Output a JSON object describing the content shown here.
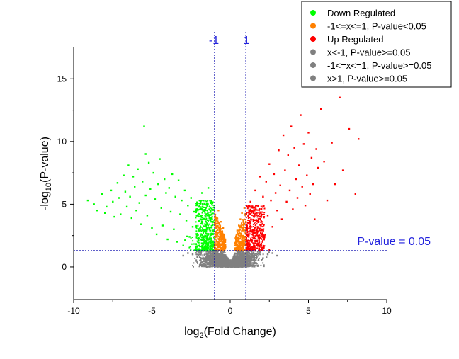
{
  "chart_data": {
    "type": "scatter",
    "title": "",
    "xlabel": {
      "prefix": "log",
      "sub": "2",
      "suffix": "(Fold Change)"
    },
    "ylabel": {
      "prefix": "-log",
      "sub": "10",
      "suffix": "(P-value)"
    },
    "xlim": [
      -10,
      10
    ],
    "ylim": [
      -2.6,
      17.5
    ],
    "xticks": [
      -10,
      -5,
      0,
      5,
      10
    ],
    "yticks": [
      0,
      5,
      10,
      15
    ],
    "grid": false,
    "legend_position": "top-right",
    "thresholds": {
      "fold_change_lines": [
        {
          "x": -1,
          "label": "-1"
        },
        {
          "x": 1,
          "label": "1"
        }
      ],
      "pvalue_line": {
        "y": 1.3,
        "label": "P-value = 0.05"
      }
    },
    "legend": [
      {
        "name": "Down Regulated",
        "color": "#00ff00"
      },
      {
        "name": "-1<=x<=1, P-value<0.05",
        "color": "#ff8000"
      },
      {
        "name": "Up Regulated",
        "color": "#ff0000"
      },
      {
        "name": "x<-1, P-value>=0.05",
        "color": "#808080"
      },
      {
        "name": "-1<=x<=1, P-value>=0.05",
        "color": "#808080"
      },
      {
        "name": "x>1, P-value>=0.05",
        "color": "#808080"
      }
    ],
    "series": [
      {
        "name": "Down Regulated",
        "color": "#00ff00",
        "points": [
          [
            -9.1,
            5.3
          ],
          [
            -8.7,
            5.0
          ],
          [
            -8.5,
            4.5
          ],
          [
            -8.2,
            5.8
          ],
          [
            -8.0,
            4.3
          ],
          [
            -7.9,
            4.8
          ],
          [
            -7.6,
            6.1
          ],
          [
            -7.5,
            5.2
          ],
          [
            -7.4,
            4.0
          ],
          [
            -7.2,
            6.7
          ],
          [
            -7.1,
            5.5
          ],
          [
            -7.0,
            4.2
          ],
          [
            -6.8,
            7.3
          ],
          [
            -6.7,
            6.0
          ],
          [
            -6.6,
            4.8
          ],
          [
            -6.5,
            8.1
          ],
          [
            -6.4,
            5.6
          ],
          [
            -6.3,
            3.9
          ],
          [
            -6.2,
            7.2
          ],
          [
            -6.1,
            6.4
          ],
          [
            -6.0,
            4.5
          ],
          [
            -5.9,
            7.8
          ],
          [
            -5.8,
            5.1
          ],
          [
            -5.7,
            3.4
          ],
          [
            -5.6,
            6.8
          ],
          [
            -5.5,
            11.2
          ],
          [
            -5.4,
            9.0
          ],
          [
            -5.4,
            5.7
          ],
          [
            -5.3,
            4.1
          ],
          [
            -5.2,
            8.3
          ],
          [
            -5.1,
            6.2
          ],
          [
            -5.0,
            3.1
          ],
          [
            -4.9,
            7.5
          ],
          [
            -4.8,
            5.4
          ],
          [
            -4.7,
            2.6
          ],
          [
            -4.6,
            6.6
          ],
          [
            -4.5,
            8.6
          ],
          [
            -4.4,
            4.7
          ],
          [
            -4.3,
            3.3
          ],
          [
            -4.2,
            7.0
          ],
          [
            -4.1,
            5.9
          ],
          [
            -4.0,
            2.2
          ],
          [
            -3.9,
            6.3
          ],
          [
            -3.8,
            4.4
          ],
          [
            -3.7,
            7.4
          ],
          [
            -3.6,
            3.0
          ],
          [
            -3.5,
            5.6
          ],
          [
            -3.4,
            2.0
          ],
          [
            -3.3,
            6.9
          ],
          [
            -3.2,
            4.2
          ],
          [
            -3.1,
            5.3
          ],
          [
            -3.0,
            1.7
          ],
          [
            -2.9,
            6.1
          ],
          [
            -2.8,
            3.7
          ],
          [
            -2.7,
            4.9
          ],
          [
            -2.6,
            2.4
          ],
          [
            -2.5,
            5.5
          ],
          [
            -2.4,
            3.2
          ],
          [
            -2.3,
            4.4
          ],
          [
            -2.2,
            1.6
          ],
          [
            -2.1,
            5.0
          ],
          [
            -2.0,
            2.9
          ],
          [
            -1.9,
            3.8
          ],
          [
            -1.8,
            5.9
          ],
          [
            -1.7,
            2.3
          ],
          [
            -1.6,
            4.1
          ],
          [
            -1.5,
            3.1
          ],
          [
            -1.4,
            6.3
          ],
          [
            -1.3,
            2.0
          ],
          [
            -1.2,
            3.6
          ],
          [
            -1.1,
            2.6
          ]
        ]
      },
      {
        "name": "-1<=x<=1, P-value<0.05",
        "color": "#ff8000",
        "points": [
          [
            -1.0,
            1.6
          ],
          [
            -0.95,
            2.6
          ],
          [
            -0.9,
            3.9
          ],
          [
            -0.85,
            2.0
          ],
          [
            -0.8,
            3.2
          ],
          [
            -0.75,
            4.5
          ],
          [
            -0.7,
            1.8
          ],
          [
            -0.65,
            2.8
          ],
          [
            -0.6,
            3.6
          ],
          [
            -0.55,
            1.5
          ],
          [
            -0.5,
            2.4
          ],
          [
            -0.45,
            3.1
          ],
          [
            -0.4,
            1.9
          ],
          [
            -0.35,
            2.2
          ],
          [
            -0.3,
            1.6
          ],
          [
            0.3,
            1.7
          ],
          [
            0.35,
            2.3
          ],
          [
            0.4,
            1.5
          ],
          [
            0.45,
            2.9
          ],
          [
            0.5,
            2.0
          ],
          [
            0.55,
            3.3
          ],
          [
            0.6,
            1.8
          ],
          [
            0.65,
            3.8
          ],
          [
            0.7,
            2.6
          ],
          [
            0.75,
            4.3
          ],
          [
            0.8,
            1.9
          ],
          [
            0.85,
            3.1
          ],
          [
            0.9,
            4.7
          ],
          [
            0.95,
            2.4
          ],
          [
            1.0,
            3.6
          ]
        ]
      },
      {
        "name": "Up Regulated",
        "color": "#ff0000",
        "points": [
          [
            1.1,
            2.1
          ],
          [
            1.2,
            3.5
          ],
          [
            1.3,
            5.2
          ],
          [
            1.4,
            2.8
          ],
          [
            1.5,
            4.3
          ],
          [
            1.6,
            6.1
          ],
          [
            1.7,
            3.0
          ],
          [
            1.8,
            4.9
          ],
          [
            1.9,
            7.2
          ],
          [
            2.0,
            3.6
          ],
          [
            2.1,
            5.6
          ],
          [
            2.2,
            2.4
          ],
          [
            2.3,
            6.8
          ],
          [
            2.4,
            4.1
          ],
          [
            2.5,
            8.2
          ],
          [
            2.6,
            5.3
          ],
          [
            2.7,
            3.2
          ],
          [
            2.8,
            7.4
          ],
          [
            2.9,
            5.9
          ],
          [
            3.0,
            4.5
          ],
          [
            3.1,
            9.3
          ],
          [
            3.2,
            6.5
          ],
          [
            3.3,
            3.8
          ],
          [
            3.4,
            10.5
          ],
          [
            3.5,
            7.7
          ],
          [
            3.6,
            5.2
          ],
          [
            3.7,
            8.9
          ],
          [
            3.8,
            6.1
          ],
          [
            3.9,
            11.2
          ],
          [
            4.0,
            4.6
          ],
          [
            4.1,
            9.5
          ],
          [
            4.2,
            7.0
          ],
          [
            4.3,
            5.5
          ],
          [
            4.4,
            8.1
          ],
          [
            4.5,
            12.1
          ],
          [
            4.6,
            6.4
          ],
          [
            4.7,
            9.8
          ],
          [
            4.8,
            4.9
          ],
          [
            4.9,
            7.3
          ],
          [
            5.0,
            10.7
          ],
          [
            5.1,
            5.8
          ],
          [
            5.2,
            8.7
          ],
          [
            5.3,
            6.6
          ],
          [
            5.4,
            3.8
          ],
          [
            5.5,
            9.4
          ],
          [
            5.6,
            7.9
          ],
          [
            5.8,
            12.6
          ],
          [
            6.0,
            8.4
          ],
          [
            6.2,
            5.3
          ],
          [
            6.5,
            9.9
          ],
          [
            6.7,
            6.6
          ],
          [
            7.0,
            13.5
          ],
          [
            7.2,
            7.7
          ],
          [
            7.6,
            11.0
          ],
          [
            8.0,
            5.8
          ],
          [
            8.2,
            10.2
          ]
        ]
      },
      {
        "name": "x<-1, P-value>=0.05",
        "color": "#808080",
        "points": [
          [
            -3.0,
            0.9
          ],
          [
            -2.7,
            1.1
          ],
          [
            -2.4,
            1.0
          ],
          [
            -2.1,
            0.8
          ],
          [
            -1.9,
            1.2
          ],
          [
            -1.7,
            0.7
          ],
          [
            -1.5,
            1.0
          ],
          [
            -1.3,
            0.6
          ],
          [
            -1.15,
            0.9
          ]
        ]
      },
      {
        "name": "-1<=x<=1, P-value>=0.05",
        "color": "#808080",
        "points": [
          [
            -1.0,
            1.1
          ],
          [
            -0.9,
            0.9
          ],
          [
            -0.8,
            0.7
          ],
          [
            -0.7,
            1.0
          ],
          [
            -0.6,
            0.5
          ],
          [
            -0.5,
            0.8
          ],
          [
            -0.4,
            0.3
          ],
          [
            -0.3,
            0.6
          ],
          [
            -0.2,
            0.2
          ],
          [
            -0.1,
            0.4
          ],
          [
            0.0,
            0.05
          ],
          [
            0.1,
            0.35
          ],
          [
            0.2,
            0.15
          ],
          [
            0.3,
            0.55
          ],
          [
            0.4,
            0.25
          ],
          [
            0.5,
            0.75
          ],
          [
            0.6,
            0.45
          ],
          [
            0.7,
            0.95
          ],
          [
            0.8,
            0.6
          ],
          [
            0.9,
            1.0
          ],
          [
            1.0,
            0.8
          ]
        ]
      },
      {
        "name": "x>1, P-value>=0.05",
        "color": "#808080",
        "points": [
          [
            1.15,
            0.9
          ],
          [
            1.3,
            0.6
          ],
          [
            1.5,
            1.1
          ],
          [
            1.7,
            0.8
          ],
          [
            1.9,
            1.2
          ],
          [
            2.1,
            0.7
          ],
          [
            2.4,
            1.0
          ],
          [
            2.7,
            1.1
          ],
          [
            3.0,
            0.9
          ]
        ]
      }
    ]
  }
}
